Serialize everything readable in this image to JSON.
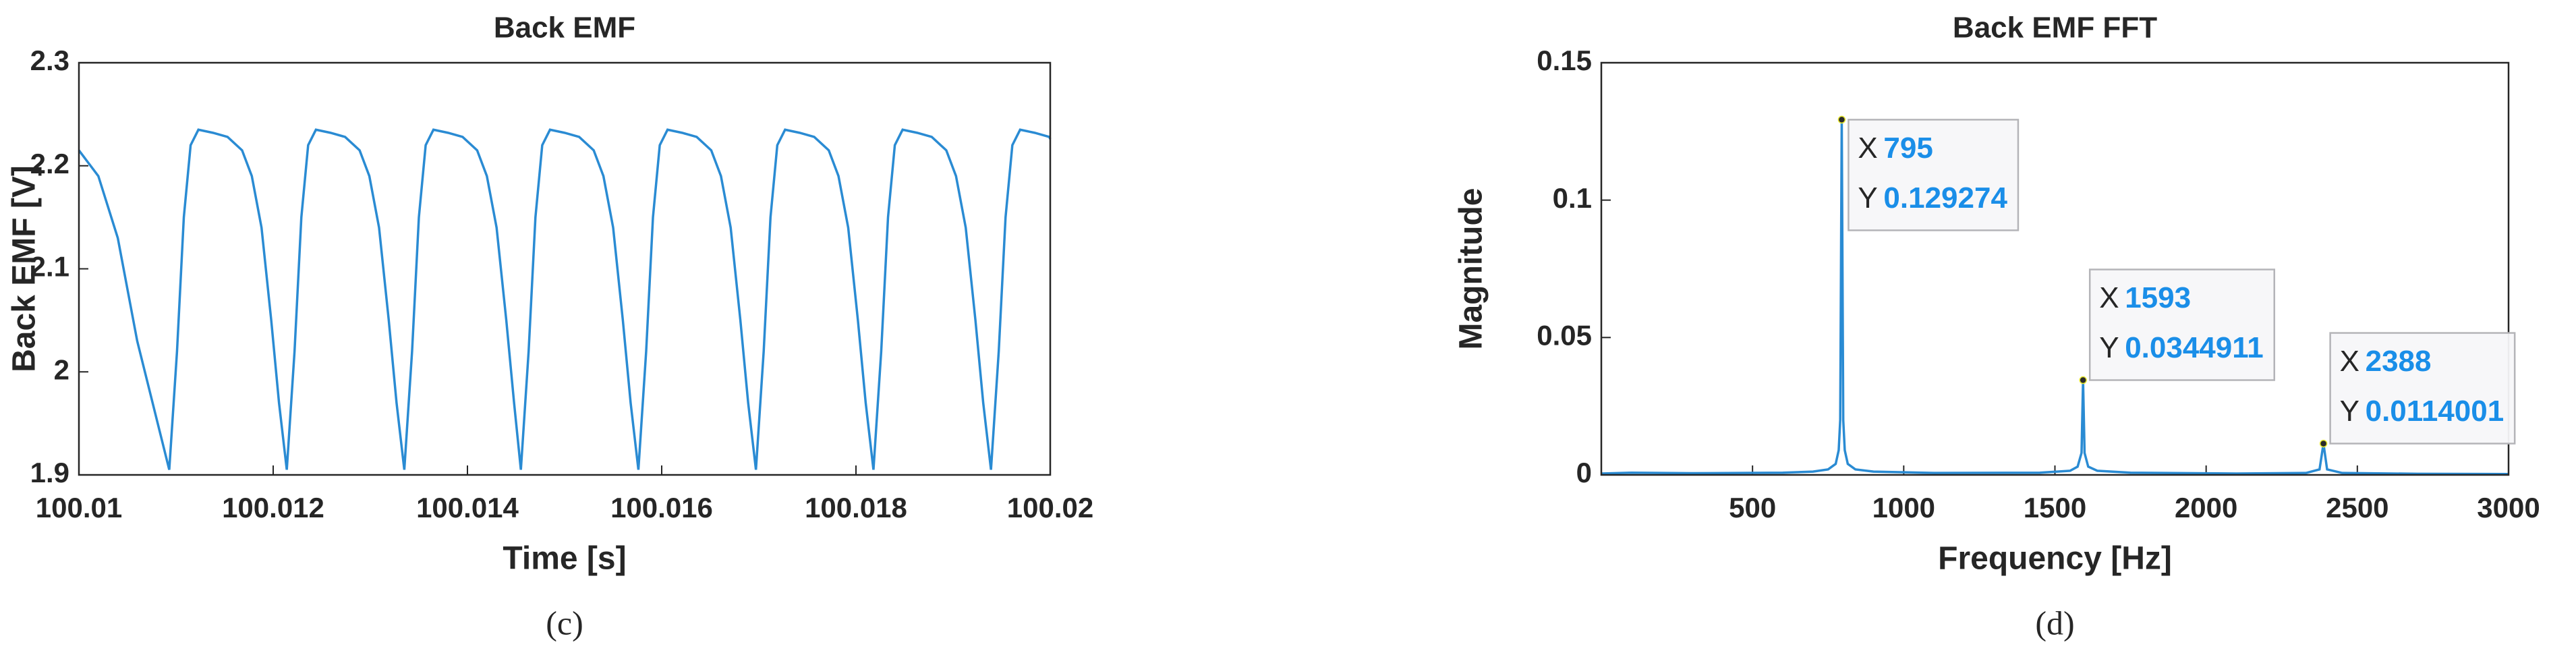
{
  "chart_data": [
    {
      "type": "line",
      "title": "Back EMF",
      "xlabel": "Time [s]",
      "ylabel": "Back EMF [V]",
      "caption": "(c)",
      "color": "#2a8bd3",
      "xlim": [
        100.01,
        100.02
      ],
      "xticks": [
        100.01,
        100.012,
        100.014,
        100.016,
        100.018,
        100.02
      ],
      "ylim": [
        1.9,
        2.3
      ],
      "yticks": [
        1.9,
        2,
        2.1,
        2.2,
        2.3
      ],
      "x": [
        100.01,
        100.0102,
        100.0104,
        100.0106,
        100.01093,
        100.01101,
        100.01108,
        100.01115,
        100.01123,
        100.01138,
        100.01153,
        100.01168,
        100.01178,
        100.01188,
        100.01198,
        100.01206,
        100.01214,
        100.01222,
        100.01229,
        100.01236,
        100.01244,
        100.01259,
        100.01274,
        100.01289,
        100.01299,
        100.01309,
        100.01319,
        100.01327,
        100.01335,
        100.01343,
        100.0135,
        100.01357,
        100.01365,
        100.0138,
        100.01395,
        100.0141,
        100.0142,
        100.0143,
        100.0144,
        100.01448,
        100.01455,
        100.01463,
        100.0147,
        100.01477,
        100.01485,
        100.015,
        100.01515,
        100.0153,
        100.0154,
        100.0155,
        100.0156,
        100.01568,
        100.01576,
        100.01584,
        100.01591,
        100.01598,
        100.01606,
        100.01621,
        100.01636,
        100.01651,
        100.01661,
        100.01671,
        100.01681,
        100.01689,
        100.01697,
        100.01705,
        100.01712,
        100.01719,
        100.01727,
        100.01742,
        100.01757,
        100.01772,
        100.01782,
        100.01792,
        100.01802,
        100.0181,
        100.01818,
        100.01826,
        100.01833,
        100.0184,
        100.01848,
        100.01863,
        100.01878,
        100.01893,
        100.01903,
        100.01913,
        100.01923,
        100.01931,
        100.01939,
        100.01947,
        100.01954,
        100.01961,
        100.01969,
        100.01984,
        100.01999,
        100.02
      ],
      "values": [
        2.215,
        2.19,
        2.13,
        2.03,
        1.905,
        2.02,
        2.15,
        2.22,
        2.235,
        2.232,
        2.228,
        2.215,
        2.19,
        2.14,
        2.05,
        1.97,
        1.905,
        2.02,
        2.15,
        2.22,
        2.235,
        2.232,
        2.228,
        2.215,
        2.19,
        2.14,
        2.05,
        1.97,
        1.905,
        2.02,
        2.15,
        2.22,
        2.235,
        2.232,
        2.228,
        2.215,
        2.19,
        2.14,
        2.05,
        1.97,
        1.905,
        2.02,
        2.15,
        2.22,
        2.235,
        2.232,
        2.228,
        2.215,
        2.19,
        2.14,
        2.05,
        1.97,
        1.905,
        2.02,
        2.15,
        2.22,
        2.235,
        2.232,
        2.228,
        2.215,
        2.19,
        2.14,
        2.05,
        1.97,
        1.905,
        2.02,
        2.15,
        2.22,
        2.235,
        2.232,
        2.228,
        2.215,
        2.19,
        2.14,
        2.05,
        1.97,
        1.905,
        2.02,
        2.15,
        2.22,
        2.235,
        2.232,
        2.228,
        2.215,
        2.19,
        2.14,
        2.05,
        1.97,
        1.905,
        2.02,
        2.15,
        2.22,
        2.235,
        2.232,
        2.228,
        2.226
      ]
    },
    {
      "type": "line",
      "title": "Back EMF FFT",
      "xlabel": "Frequency [Hz]",
      "ylabel": "Magnitude",
      "caption": "(d)",
      "color": "#2a8bd3",
      "xlim": [
        0,
        3000
      ],
      "xticks": [
        500,
        1000,
        1500,
        2000,
        2500,
        3000
      ],
      "ylim": [
        0,
        0.15
      ],
      "yticks": [
        0,
        0.05,
        0.1,
        0.15
      ],
      "x": [
        0,
        100,
        300,
        600,
        700,
        750,
        775,
        785,
        790,
        795,
        800,
        805,
        815,
        840,
        900,
        1100,
        1450,
        1550,
        1575,
        1588,
        1593,
        1598,
        1610,
        1640,
        1750,
        2100,
        2330,
        2375,
        2388,
        2400,
        2450,
        2700,
        3000
      ],
      "values": [
        0.0005,
        0.0008,
        0.0006,
        0.0008,
        0.0012,
        0.002,
        0.004,
        0.009,
        0.02,
        0.129274,
        0.02,
        0.009,
        0.004,
        0.002,
        0.0012,
        0.0007,
        0.0008,
        0.0015,
        0.003,
        0.008,
        0.0344911,
        0.008,
        0.003,
        0.0015,
        0.0008,
        0.0005,
        0.0007,
        0.002,
        0.0114001,
        0.002,
        0.0007,
        0.0004,
        0.0003
      ],
      "datatip_labels": [
        "X",
        "Y"
      ],
      "datatips": [
        {
          "x": 795,
          "y": 0.129274
        },
        {
          "x": 1593,
          "y": 0.0344911
        },
        {
          "x": 2388,
          "y": 0.0114001
        }
      ]
    }
  ]
}
